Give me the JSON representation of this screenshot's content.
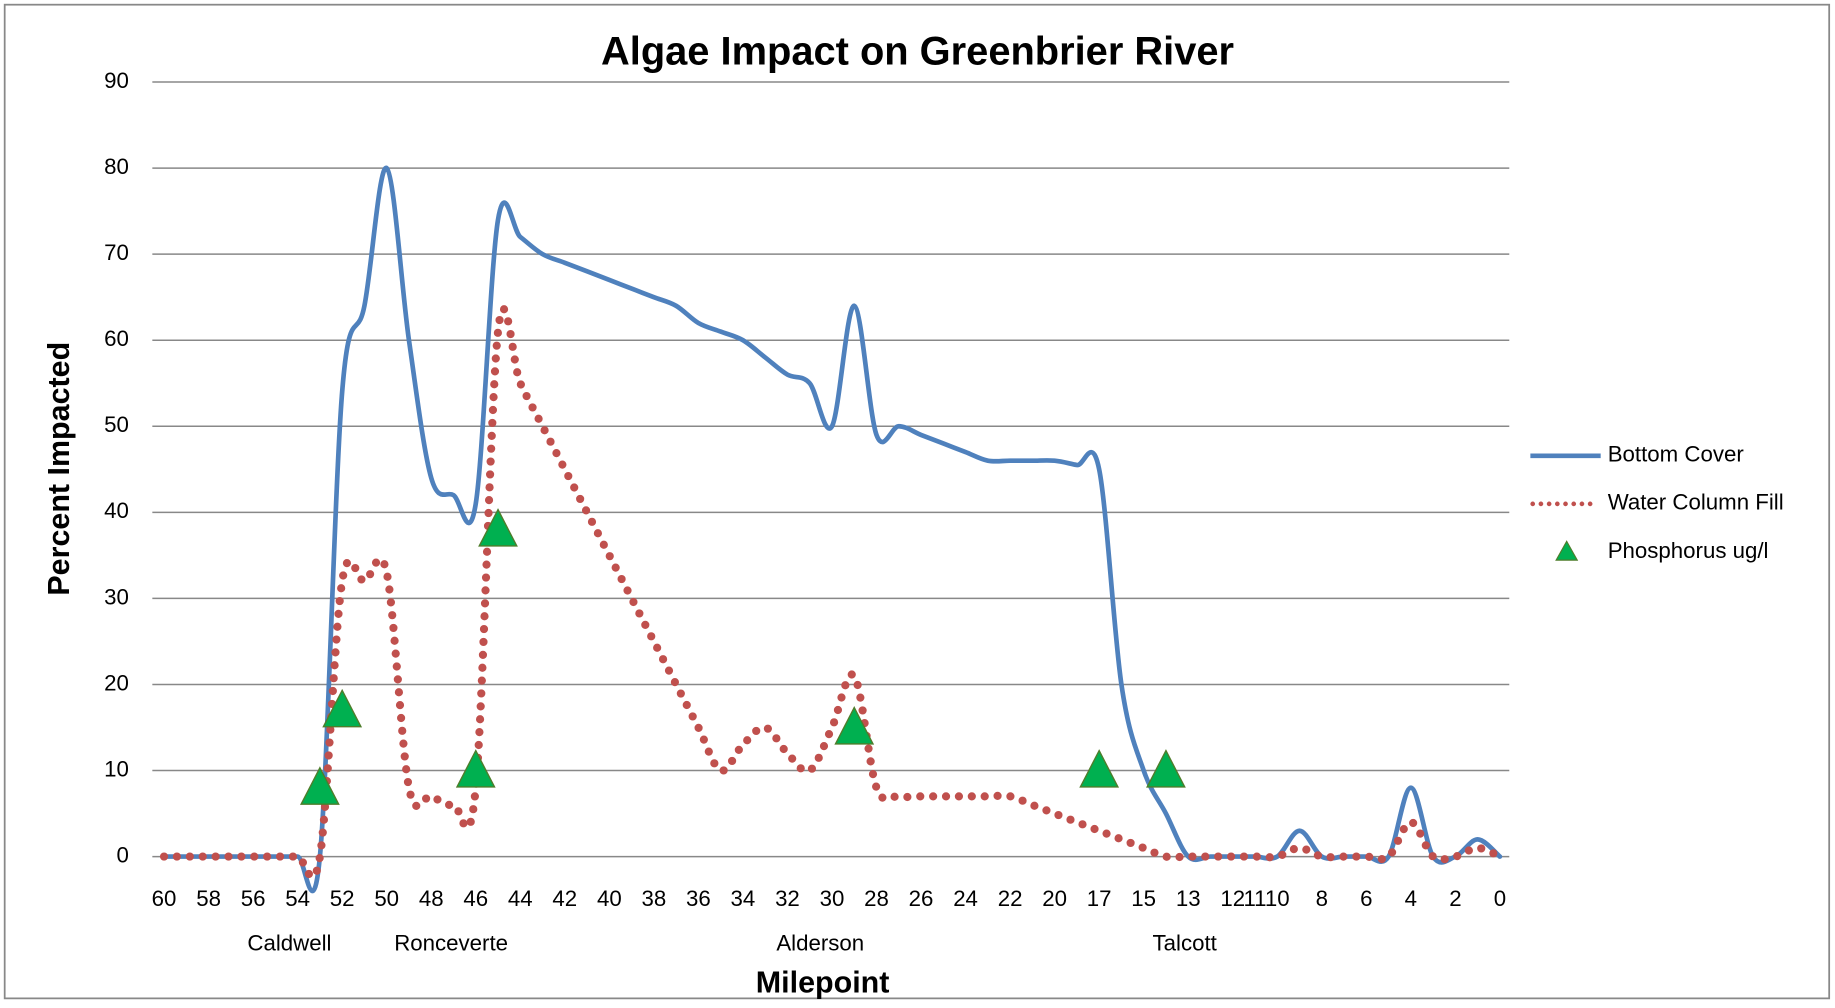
{
  "chart_data": {
    "type": "line",
    "title": "Algae Impact on Greenbrier River",
    "x_label": "Milepoint",
    "y_label": "Percent Impacted",
    "categories": [
      "60",
      null,
      "58",
      null,
      "56",
      null,
      "54",
      null,
      "52",
      null,
      "50",
      null,
      "48",
      null,
      "46",
      null,
      "44",
      null,
      "42",
      null,
      "40",
      null,
      "38",
      null,
      "36",
      null,
      "34",
      null,
      "32",
      null,
      "30",
      null,
      "28",
      null,
      "26",
      null,
      "24",
      null,
      "22",
      null,
      "20",
      null,
      "17",
      null,
      "15",
      null,
      "13",
      null,
      "12",
      "11",
      "10",
      null,
      "8",
      null,
      "6",
      null,
      "4",
      null,
      "2",
      null,
      "0"
    ],
    "town_labels": [
      "Caldwell",
      "Ronceverte",
      "Alderson",
      "Talcott"
    ],
    "ylim": [
      0,
      90
    ],
    "yticks": [
      0,
      10,
      20,
      30,
      40,
      50,
      60,
      70,
      80,
      90
    ],
    "grid": true,
    "legend": "right",
    "series": [
      {
        "name": "Bottom Cover",
        "color": "#4f81bd",
        "style": "solid",
        "values": [
          0,
          0,
          0,
          0,
          0,
          0,
          0,
          0,
          54,
          64,
          80,
          60,
          44,
          42,
          41,
          74,
          72,
          70,
          69,
          68,
          67,
          66,
          65,
          64,
          62,
          61,
          60,
          58,
          56,
          55,
          50,
          64,
          49,
          50,
          49,
          48,
          47,
          46,
          46,
          46,
          46,
          45.5,
          45,
          20,
          10,
          5,
          0,
          0,
          0,
          0,
          0,
          3,
          0,
          0,
          0,
          0,
          8,
          0,
          0,
          2,
          0
        ]
      },
      {
        "name": "Water Column Fill",
        "color": "#c0504d",
        "style": "dotted",
        "values": [
          0,
          0,
          0,
          0,
          0,
          0,
          0,
          0,
          32,
          32,
          33,
          8,
          7,
          6,
          8,
          61,
          55,
          50,
          45,
          40,
          35,
          30,
          25,
          20,
          15,
          10,
          13,
          15,
          12,
          10,
          15,
          21,
          8,
          7,
          7,
          7,
          7,
          7,
          7,
          6,
          5,
          4,
          3,
          2,
          1,
          0,
          0,
          0,
          0,
          0,
          0,
          1,
          0,
          0,
          0,
          0,
          4,
          0,
          0,
          1,
          0
        ]
      },
      {
        "name": "Phosphorus ug/l",
        "color": "#00b050",
        "style": "marker",
        "values": [
          null,
          null,
          null,
          null,
          null,
          null,
          null,
          8,
          17,
          null,
          null,
          null,
          null,
          null,
          10,
          38,
          null,
          null,
          null,
          null,
          null,
          null,
          null,
          null,
          null,
          null,
          null,
          null,
          null,
          null,
          null,
          15,
          null,
          null,
          null,
          null,
          null,
          null,
          null,
          null,
          null,
          null,
          10,
          null,
          null,
          10,
          null,
          null,
          null,
          null,
          null,
          null,
          null,
          null,
          null,
          null,
          null,
          null,
          null,
          null,
          null
        ]
      }
    ]
  }
}
